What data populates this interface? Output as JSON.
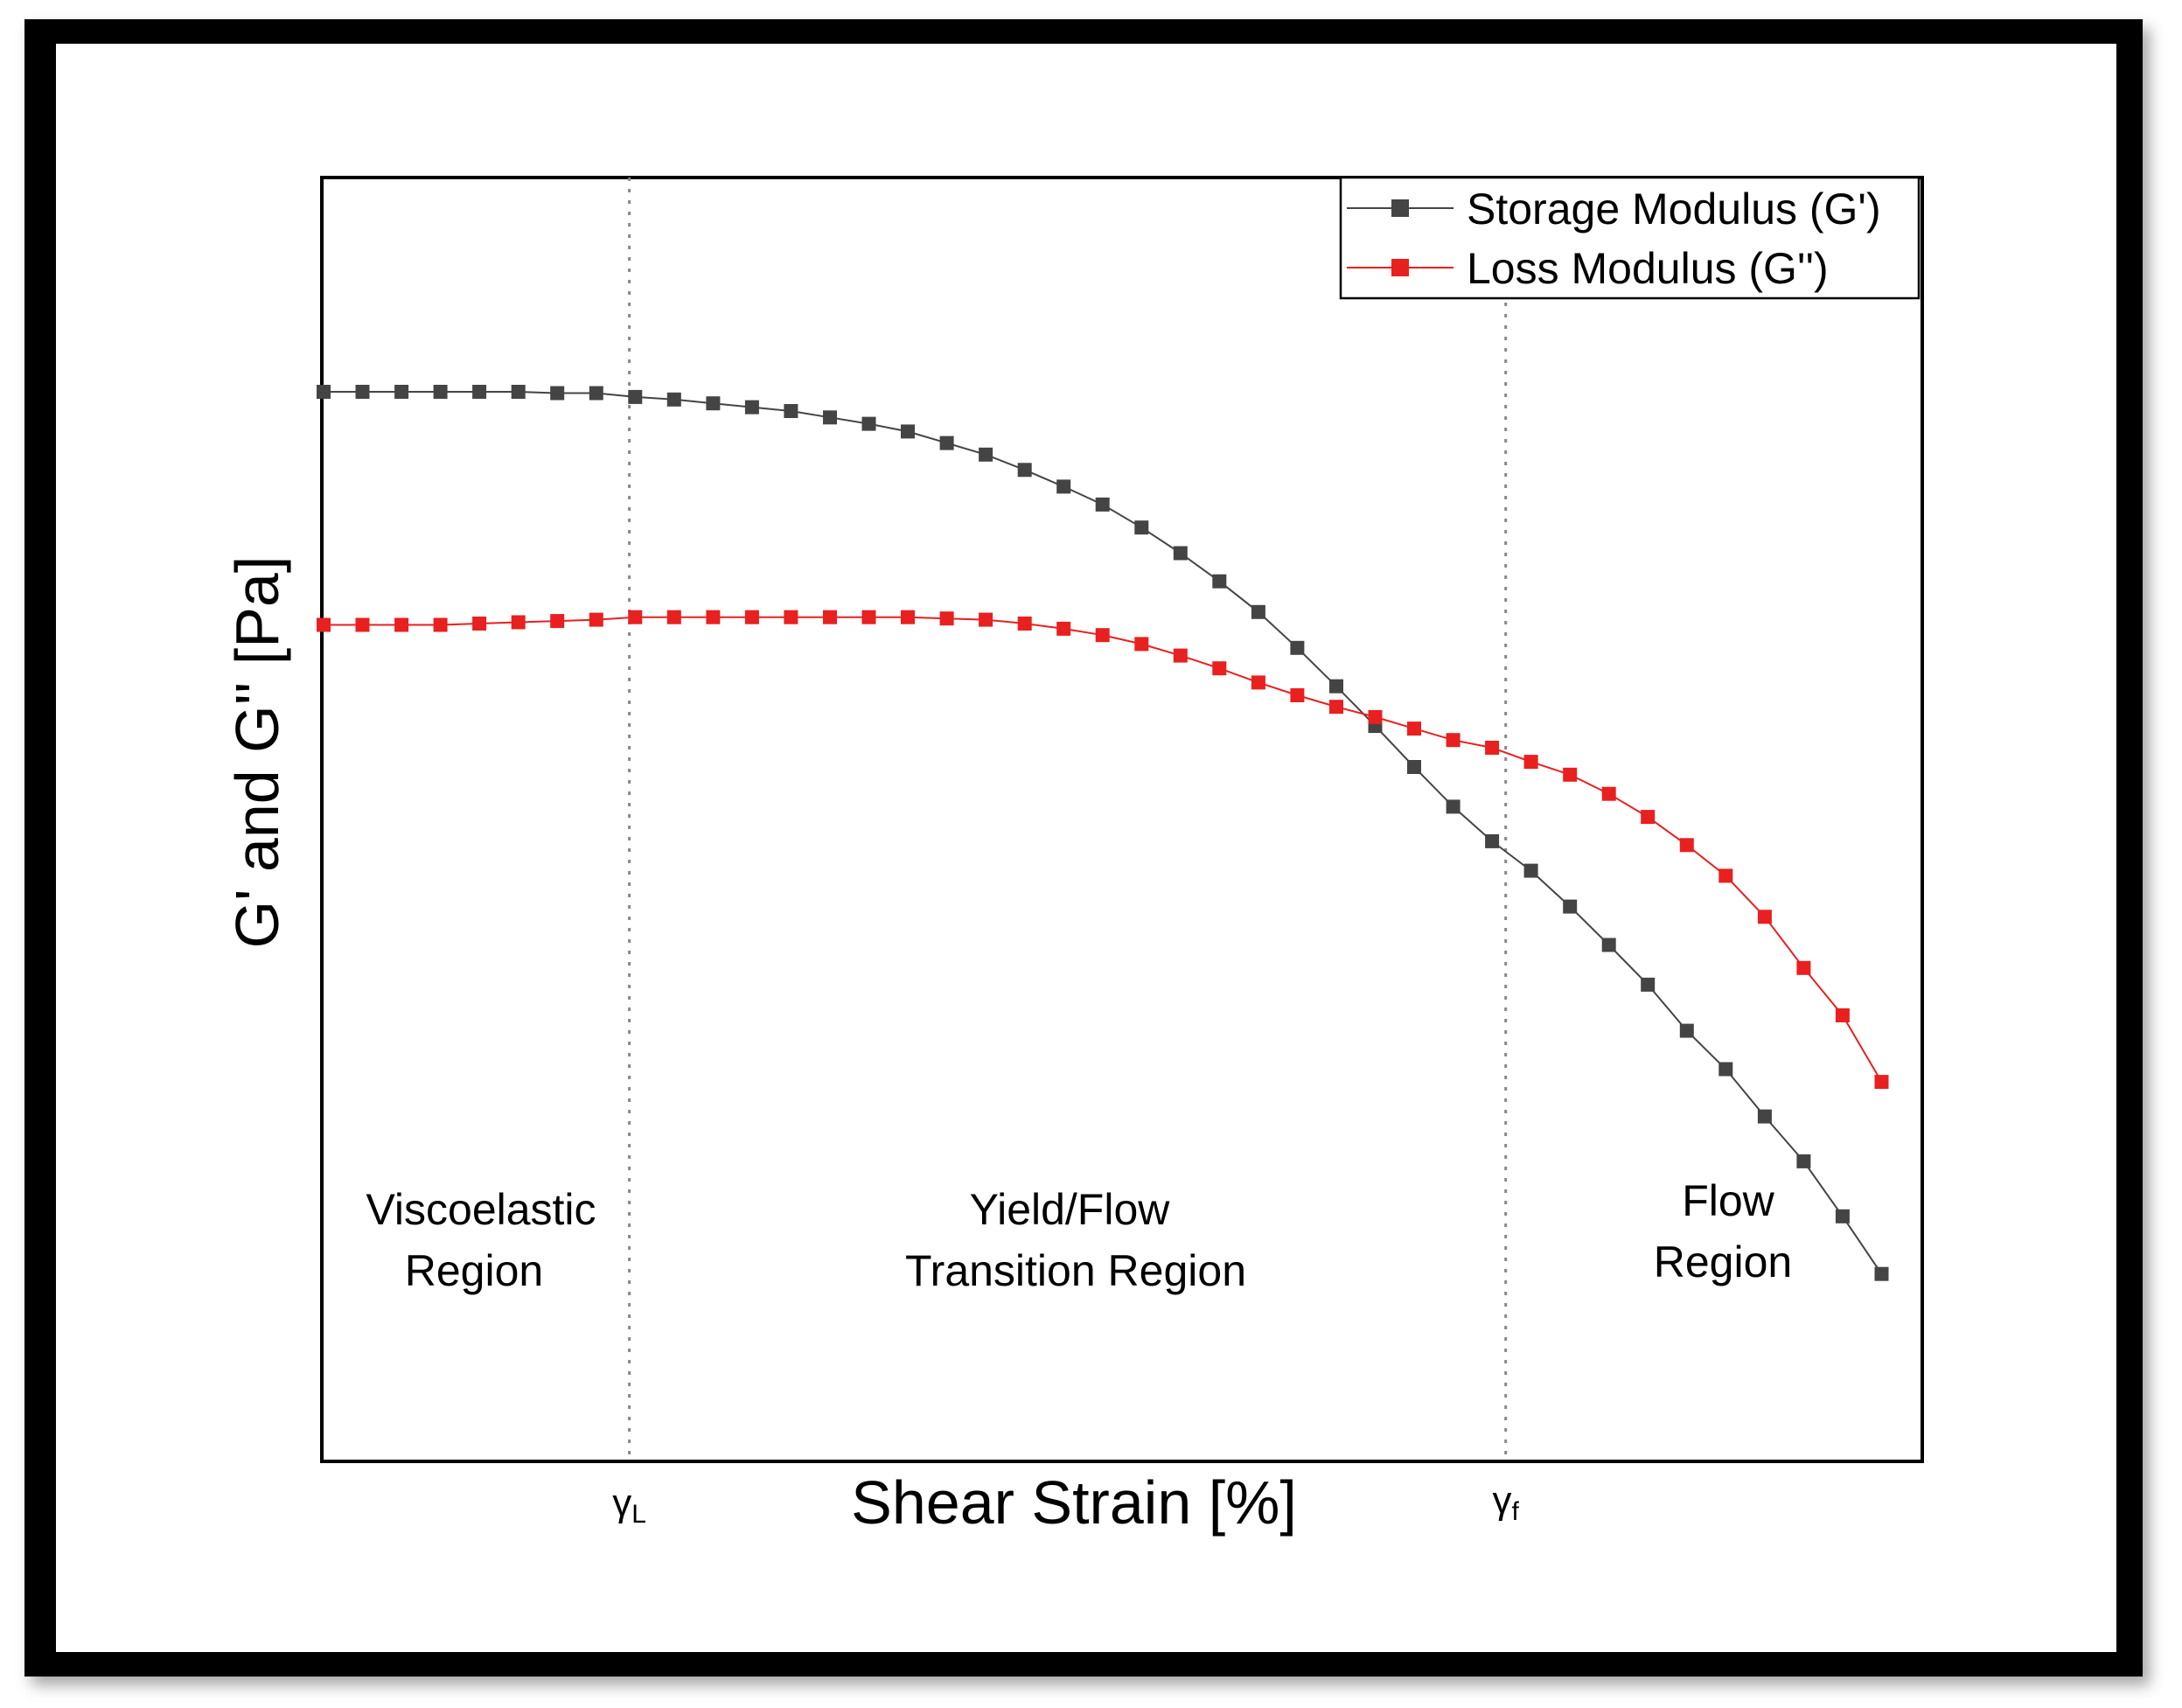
{
  "chart_data": {
    "type": "line",
    "xlabel": "Shear Strain [%]",
    "ylabel": "G' and G'' [Pa]",
    "xlim": [
      0,
      41
    ],
    "ylim": [
      0,
      100
    ],
    "x": [
      0,
      1,
      2,
      3,
      4,
      5,
      6,
      7,
      8,
      9,
      10,
      11,
      12,
      13,
      14,
      15,
      16,
      17,
      18,
      19,
      20,
      21,
      22,
      23,
      24,
      25,
      26,
      27,
      28,
      29,
      30,
      31,
      32,
      33,
      34,
      35,
      36,
      37,
      38,
      39,
      40
    ],
    "series": [
      {
        "name": "Storage Modulus (G')",
        "color": "#444444",
        "marker": "square",
        "values": [
          83.4,
          83.4,
          83.4,
          83.4,
          83.4,
          83.4,
          83.3,
          83.3,
          83.0,
          82.8,
          82.5,
          82.2,
          81.9,
          81.4,
          80.9,
          80.3,
          79.4,
          78.5,
          77.3,
          76.0,
          74.6,
          72.8,
          70.8,
          68.6,
          66.2,
          63.4,
          60.4,
          57.3,
          54.1,
          51.0,
          48.3,
          46.0,
          43.2,
          40.2,
          37.1,
          33.5,
          30.5,
          26.8,
          23.3,
          19.0,
          14.5
        ]
      },
      {
        "name": "Loss Modulus (G'')",
        "color": "#e82020",
        "marker": "square",
        "values": [
          65.2,
          65.2,
          65.2,
          65.2,
          65.3,
          65.4,
          65.5,
          65.6,
          65.8,
          65.8,
          65.8,
          65.8,
          65.8,
          65.8,
          65.8,
          65.8,
          65.7,
          65.6,
          65.3,
          64.9,
          64.4,
          63.7,
          62.8,
          61.8,
          60.7,
          59.7,
          58.8,
          58.0,
          57.1,
          56.2,
          55.6,
          54.5,
          53.5,
          52.0,
          50.2,
          48.0,
          45.6,
          42.4,
          38.4,
          34.7,
          29.5
        ]
      }
    ],
    "vlines": [
      {
        "x": 7.85,
        "label": "γ",
        "sub": "L",
        "style": "dotted"
      },
      {
        "x": 30.35,
        "label": "γ",
        "sub": "f",
        "style": "dotted"
      }
    ],
    "annotations": [
      {
        "line1": "Viscoelastic",
        "line2": "Region"
      },
      {
        "line1": "Yield/Flow",
        "line2": "Transition Region"
      },
      {
        "line1": "Flow",
        "line2": "Region"
      }
    ],
    "legend_position": "top-right",
    "grid": false
  }
}
